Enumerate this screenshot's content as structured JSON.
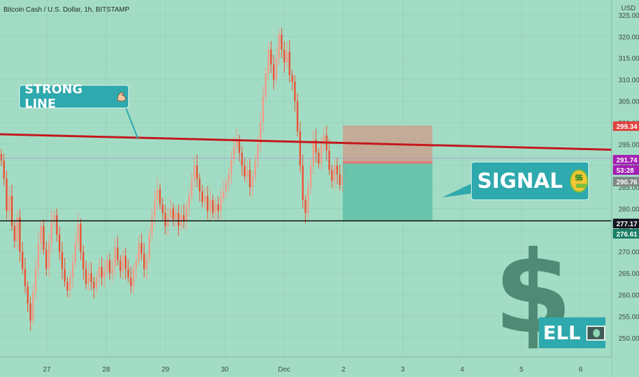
{
  "chart_data": {
    "type": "candlestick",
    "title": "Bitcoin Cash / U.S. Dollar, 1h, BITSTAMP",
    "currency": "USD",
    "y_ticks": [
      250,
      255,
      260,
      265,
      270,
      275,
      280,
      285,
      290,
      295,
      300,
      305,
      310,
      315,
      320,
      325
    ],
    "y_tick_labels": [
      "250.00",
      "255.00",
      "260.00",
      "265.00",
      "270.00",
      "275.00",
      "280.00",
      "285.00",
      "290.00",
      "295.00",
      "300.00",
      "305.00",
      "310.00",
      "315.00",
      "320.00",
      "325.00"
    ],
    "ylim": [
      245.5,
      328.5
    ],
    "x_ticks": [
      "27",
      "28",
      "29",
      "30",
      "Dec",
      "2",
      "3",
      "4",
      "5",
      "6"
    ],
    "x_tick_days": [
      1,
      2,
      3,
      4,
      5,
      6,
      7,
      8,
      9,
      10
    ],
    "xlim_days": [
      0.21,
      10.52
    ],
    "candle_closes": [
      291.2,
      287.0,
      279.5,
      283.0,
      276.0,
      272.5,
      278.0,
      270.0,
      266.0,
      262.0,
      258.0,
      254.0,
      260.5,
      266.0,
      272.0,
      276.0,
      270.5,
      266.0,
      272.0,
      277.0,
      278.5,
      274.0,
      270.0,
      266.0,
      263.0,
      261.0,
      264.0,
      267.5,
      272.0,
      276.5,
      270.0,
      266.0,
      262.5,
      265.0,
      263.0,
      261.5,
      264.0,
      266.5,
      264.0,
      265.5,
      268.0,
      265.0,
      266.5,
      271.0,
      268.0,
      265.5,
      269.0,
      266.0,
      264.0,
      262.0,
      266.0,
      268.0,
      272.0,
      269.5,
      266.0,
      268.5,
      274.0,
      278.0,
      282.0,
      284.5,
      281.0,
      279.0,
      276.0,
      278.0,
      280.0,
      277.5,
      279.0,
      276.0,
      278.5,
      277.0,
      280.5,
      283.0,
      286.5,
      290.0,
      287.0,
      284.0,
      281.5,
      283.0,
      279.5,
      282.0,
      279.0,
      281.0,
      279.5,
      282.5,
      284.0,
      286.0,
      288.0,
      291.5,
      294.5,
      296.0,
      293.0,
      290.0,
      287.5,
      289.0,
      285.0,
      287.5,
      291.0,
      295.0,
      300.0,
      306.0,
      311.5,
      317.0,
      313.5,
      310.0,
      315.0,
      320.5,
      317.0,
      314.0,
      316.5,
      311.0,
      309.5,
      305.0,
      298.0,
      290.0,
      282.0,
      279.0,
      285.0,
      290.0,
      296.0,
      293.0,
      290.5,
      295.0,
      297.0,
      293.5,
      289.0,
      286.5,
      290.0,
      288.0,
      285.5,
      287.5,
      291.5
    ],
    "price_tags": [
      {
        "label": "299.34",
        "color": "#e04545"
      },
      {
        "label": "291.74",
        "color": "#a41fb3"
      },
      {
        "label": "53:28",
        "color": "#a41fb3"
      },
      {
        "label": "290.76",
        "color": "#7e8a87"
      },
      {
        "label": "277.17",
        "color": "#131722"
      },
      {
        "label": "276.61",
        "color": "#1a7f68"
      }
    ],
    "trendline": {
      "color": "#c4161c"
    },
    "support_line": {
      "value": 277.17,
      "color": "#000000"
    },
    "position": {
      "entry": 290.76,
      "stop": 299.34,
      "target": 277.17,
      "start_day": 5.99,
      "end_day": 7.5,
      "stop_color": "#c9a28f",
      "target_color": "#5fbfa8"
    },
    "colors": {
      "background": "#a3dcc4",
      "up": "#f39a86",
      "down": "#ef4e30",
      "axis_text": "#3b4a44"
    }
  },
  "callouts": {
    "strong_line": "STRONG LINE",
    "signal": "SIGNAL",
    "sell_text": "ELL",
    "dollar_sign": "$",
    "strong_icon": "flexed-biceps-icon",
    "signal_icon": "money-mouth-face-icon",
    "sell_icon": "banknote-icon"
  }
}
